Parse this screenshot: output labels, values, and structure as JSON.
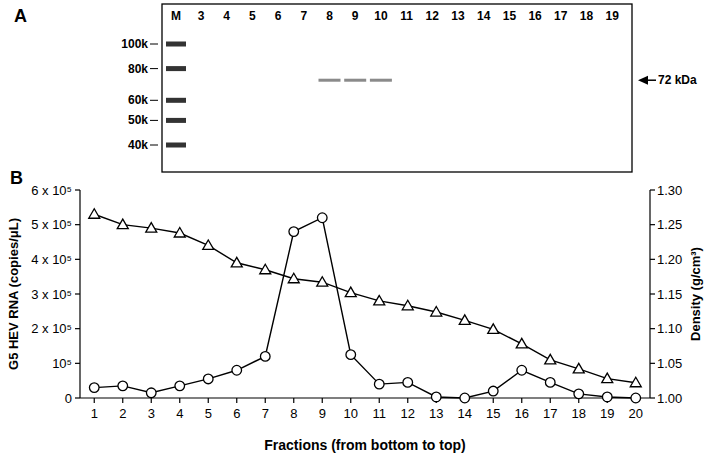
{
  "blot": {
    "label": "A",
    "lanes": [
      "M",
      "3",
      "4",
      "5",
      "6",
      "7",
      "8",
      "9",
      "10",
      "11",
      "12",
      "13",
      "14",
      "15",
      "16",
      "17",
      "18",
      "19"
    ],
    "markers": [
      {
        "value": 100,
        "label": "100k"
      },
      {
        "value": 80,
        "label": "80k"
      },
      {
        "value": 60,
        "label": "60k"
      },
      {
        "value": 50,
        "label": "50k"
      },
      {
        "value": 40,
        "label": "40k"
      }
    ],
    "bands": {
      "lanes": [
        "8",
        "9",
        "10"
      ],
      "kda": 72,
      "label": "72 kDa"
    }
  },
  "chart_data": {
    "type": "line",
    "title": "B",
    "x_label": "Fractions (from bottom to top)",
    "y_label": "G5 HEV RNA (copies/μL)",
    "y2_label": "Density (g/cm³)",
    "x": [
      1,
      2,
      3,
      4,
      5,
      6,
      7,
      8,
      9,
      10,
      11,
      12,
      13,
      14,
      15,
      16,
      17,
      18,
      19,
      20
    ],
    "xlim": [
      0.5,
      20.5
    ],
    "xticks": [
      1,
      2,
      3,
      4,
      5,
      6,
      7,
      8,
      9,
      10,
      11,
      12,
      13,
      14,
      15,
      16,
      17,
      18,
      19,
      20
    ],
    "ylim": [
      0,
      600000
    ],
    "yticks": [
      0,
      {
        "value": 100000,
        "label": "10⁵"
      },
      {
        "value": 200000,
        "label": "2 x 10⁵"
      },
      {
        "value": 300000,
        "label": "3 x 10⁵"
      },
      {
        "value": 400000,
        "label": "4 x 10⁵"
      },
      {
        "value": 500000,
        "label": "5 x 10⁵"
      },
      {
        "value": 600000,
        "label": "6 x 10⁵"
      }
    ],
    "y2lim": [
      1.0,
      1.3
    ],
    "y2ticks": [
      {
        "value": 1.0,
        "label": "1.00"
      },
      1.05,
      {
        "value": 1.1,
        "label": "1.10"
      },
      1.15,
      {
        "value": 1.2,
        "label": "1.20"
      },
      1.25,
      {
        "value": 1.3,
        "label": "1.30"
      }
    ],
    "grid": false,
    "series": [
      {
        "color": "#000000",
        "marker": "circle",
        "line_style": "solid",
        "values": [
          30000,
          35000,
          15000,
          35000,
          55000,
          80000,
          120000,
          480000,
          520000,
          125000,
          40000,
          45000,
          3000,
          0,
          20000,
          80000,
          45000,
          12000,
          3000,
          0
        ]
      },
      {
        "color": "#000000",
        "marker": "triangle",
        "line_style": "solid",
        "axis": "y2",
        "values": [
          1.265,
          1.25,
          1.245,
          1.238,
          1.22,
          1.195,
          1.185,
          1.172,
          1.167,
          1.152,
          1.14,
          1.133,
          1.124,
          1.112,
          1.099,
          1.078,
          1.055,
          1.042,
          1.028,
          1.022
        ]
      }
    ]
  }
}
